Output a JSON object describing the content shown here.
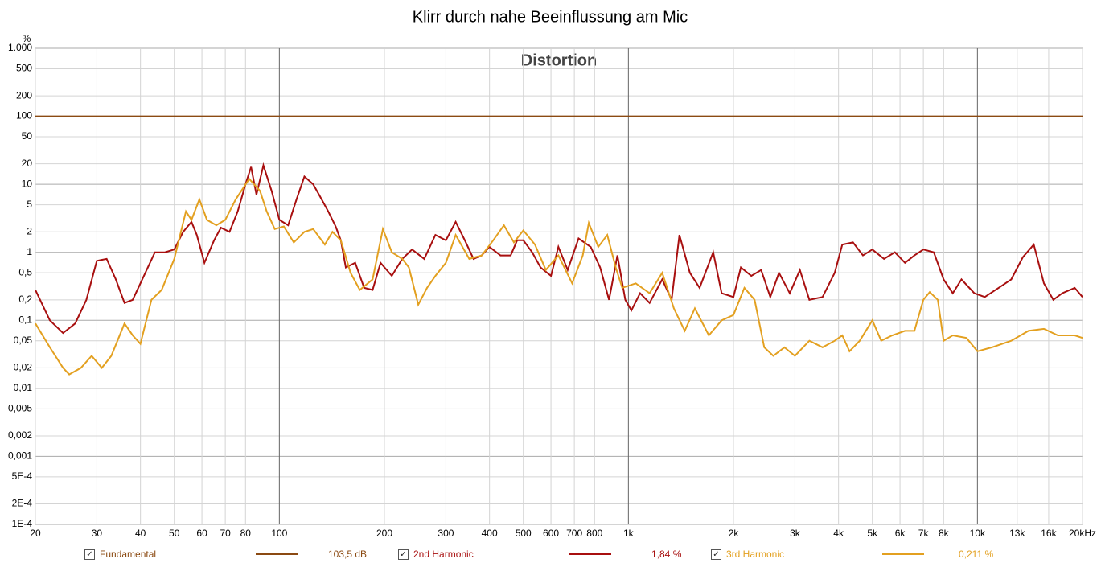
{
  "chart_data": {
    "type": "line",
    "title": "Klirr durch nahe Beeinflussung am Mic",
    "plot_title": "Distortion",
    "y_unit": "%",
    "log_x": true,
    "log_y": true,
    "grid": true,
    "xlim": [
      20,
      20000
    ],
    "ylim": [
      0.0001,
      1000
    ],
    "xticks": [
      20,
      30,
      40,
      50,
      60,
      70,
      80,
      100,
      200,
      300,
      400,
      500,
      600,
      700,
      800,
      {
        "value": 1000,
        "label": "1k"
      },
      {
        "value": 2000,
        "label": "2k"
      },
      {
        "value": 3000,
        "label": "3k"
      },
      {
        "value": 4000,
        "label": "4k"
      },
      {
        "value": 5000,
        "label": "5k"
      },
      {
        "value": 6000,
        "label": "6k"
      },
      {
        "value": 7000,
        "label": "7k"
      },
      {
        "value": 8000,
        "label": "8k"
      },
      {
        "value": 10000,
        "label": "10k"
      },
      {
        "value": 13000,
        "label": "13k"
      },
      {
        "value": 16000,
        "label": "16k"
      },
      {
        "value": 20000,
        "label": "20kHz"
      }
    ],
    "yticks": [
      {
        "value": 1000,
        "label": "1.000"
      },
      500,
      200,
      100,
      50,
      20,
      10,
      5,
      2,
      1,
      {
        "value": 0.5,
        "label": "0,5"
      },
      {
        "value": 0.2,
        "label": "0,2"
      },
      {
        "value": 0.1,
        "label": "0,1"
      },
      {
        "value": 0.05,
        "label": "0,05"
      },
      {
        "value": 0.02,
        "label": "0,02"
      },
      {
        "value": 0.01,
        "label": "0,01"
      },
      {
        "value": 0.005,
        "label": "0,005"
      },
      {
        "value": 0.002,
        "label": "0,002"
      },
      {
        "value": 0.001,
        "label": "0,001"
      },
      {
        "value": 0.0005,
        "label": "5E-4"
      },
      {
        "value": 0.0002,
        "label": "2E-4"
      },
      {
        "value": 0.0001,
        "label": "1E-4"
      }
    ],
    "series": [
      {
        "name": "Fundamental",
        "color": "#8b4a12",
        "legend_value": "103,5 dB",
        "x": [
          20,
          20000
        ],
        "values": [
          100,
          100
        ]
      },
      {
        "name": "2nd Harmonic",
        "color": "#a80f0f",
        "legend_value": "1,84 %",
        "x": [
          20,
          22,
          24,
          26,
          28,
          30,
          32,
          34,
          36,
          38,
          40,
          44,
          47,
          50,
          53,
          56,
          58,
          61,
          65,
          68,
          72,
          76,
          80,
          83,
          86,
          90,
          95,
          100,
          106,
          112,
          118,
          125,
          130,
          138,
          145,
          150,
          155,
          165,
          175,
          185,
          195,
          210,
          225,
          240,
          260,
          280,
          300,
          320,
          340,
          360,
          380,
          400,
          430,
          460,
          480,
          500,
          530,
          560,
          600,
          630,
          670,
          720,
          780,
          830,
          880,
          930,
          980,
          1020,
          1080,
          1150,
          1250,
          1330,
          1400,
          1500,
          1600,
          1750,
          1850,
          2000,
          2100,
          2250,
          2400,
          2550,
          2700,
          2900,
          3100,
          3300,
          3600,
          3900,
          4100,
          4400,
          4700,
          5000,
          5400,
          5800,
          6200,
          6600,
          7000,
          7500,
          8000,
          8500,
          9000,
          9800,
          10500,
          11500,
          12500,
          13500,
          14500,
          15500,
          16500,
          17500,
          19000,
          20000
        ],
        "values": [
          0.28,
          0.1,
          0.065,
          0.09,
          0.2,
          0.75,
          0.8,
          0.4,
          0.18,
          0.2,
          0.35,
          1.0,
          1.0,
          1.1,
          2.0,
          2.8,
          1.8,
          0.7,
          1.5,
          2.3,
          2.0,
          4,
          10,
          18,
          7,
          19,
          8,
          3,
          2.5,
          6,
          13,
          10,
          7,
          4,
          2.4,
          1.5,
          0.6,
          0.7,
          0.3,
          0.28,
          0.7,
          0.45,
          0.8,
          1.1,
          0.8,
          1.8,
          1.5,
          2.8,
          1.5,
          0.8,
          0.9,
          1.2,
          0.9,
          0.9,
          1.5,
          1.5,
          1.0,
          0.6,
          0.45,
          1.2,
          0.55,
          1.6,
          1.2,
          0.6,
          0.2,
          0.9,
          0.2,
          0.14,
          0.25,
          0.18,
          0.4,
          0.2,
          1.8,
          0.5,
          0.3,
          1.0,
          0.25,
          0.22,
          0.6,
          0.45,
          0.55,
          0.22,
          0.5,
          0.25,
          0.55,
          0.2,
          0.22,
          0.5,
          1.3,
          1.4,
          0.9,
          1.1,
          0.8,
          1.0,
          0.7,
          0.9,
          1.1,
          1.0,
          0.4,
          0.25,
          0.4,
          0.25,
          0.22,
          0.3,
          0.4,
          0.85,
          1.3,
          0.35,
          0.2,
          0.25,
          0.3,
          0.22
        ]
      },
      {
        "name": "3rd Harmonic",
        "color": "#e3a020",
        "legend_value": "0,211 %",
        "x": [
          20,
          22,
          24,
          25,
          27,
          29,
          31,
          33,
          36,
          38,
          40,
          43,
          46,
          50,
          54,
          56,
          59,
          62,
          66,
          70,
          75,
          82,
          88,
          92,
          97,
          103,
          110,
          118,
          125,
          135,
          142,
          150,
          160,
          170,
          185,
          198,
          210,
          225,
          235,
          250,
          265,
          280,
          300,
          320,
          350,
          380,
          410,
          440,
          470,
          500,
          540,
          580,
          630,
          690,
          740,
          770,
          820,
          870,
          920,
          960,
          1050,
          1150,
          1250,
          1350,
          1450,
          1550,
          1700,
          1850,
          2000,
          2150,
          2300,
          2450,
          2600,
          2800,
          3000,
          3300,
          3600,
          3900,
          4100,
          4300,
          4600,
          5000,
          5300,
          5700,
          6200,
          6600,
          7000,
          7300,
          7700,
          8000,
          8500,
          9300,
          10000,
          11000,
          12500,
          14000,
          15500,
          17000,
          19000,
          20000
        ],
        "values": [
          0.09,
          0.04,
          0.02,
          0.016,
          0.02,
          0.03,
          0.02,
          0.03,
          0.09,
          0.06,
          0.045,
          0.2,
          0.28,
          0.8,
          4,
          3,
          6,
          3,
          2.5,
          3,
          6,
          12,
          8,
          4,
          2.2,
          2.4,
          1.4,
          2,
          2.2,
          1.3,
          2.0,
          1.5,
          0.5,
          0.28,
          0.4,
          2.2,
          1.0,
          0.8,
          0.6,
          0.17,
          0.3,
          0.45,
          0.7,
          1.8,
          0.8,
          0.9,
          1.5,
          2.5,
          1.4,
          2.1,
          1.3,
          0.55,
          0.9,
          0.35,
          0.9,
          2.7,
          1.2,
          1.8,
          0.6,
          0.3,
          0.35,
          0.25,
          0.5,
          0.15,
          0.07,
          0.15,
          0.06,
          0.1,
          0.12,
          0.3,
          0.2,
          0.04,
          0.03,
          0.04,
          0.03,
          0.05,
          0.04,
          0.05,
          0.06,
          0.035,
          0.05,
          0.1,
          0.05,
          0.06,
          0.07,
          0.07,
          0.2,
          0.26,
          0.2,
          0.05,
          0.06,
          0.055,
          0.035,
          0.04,
          0.05,
          0.07,
          0.075,
          0.06,
          0.06,
          0.055
        ]
      }
    ]
  }
}
